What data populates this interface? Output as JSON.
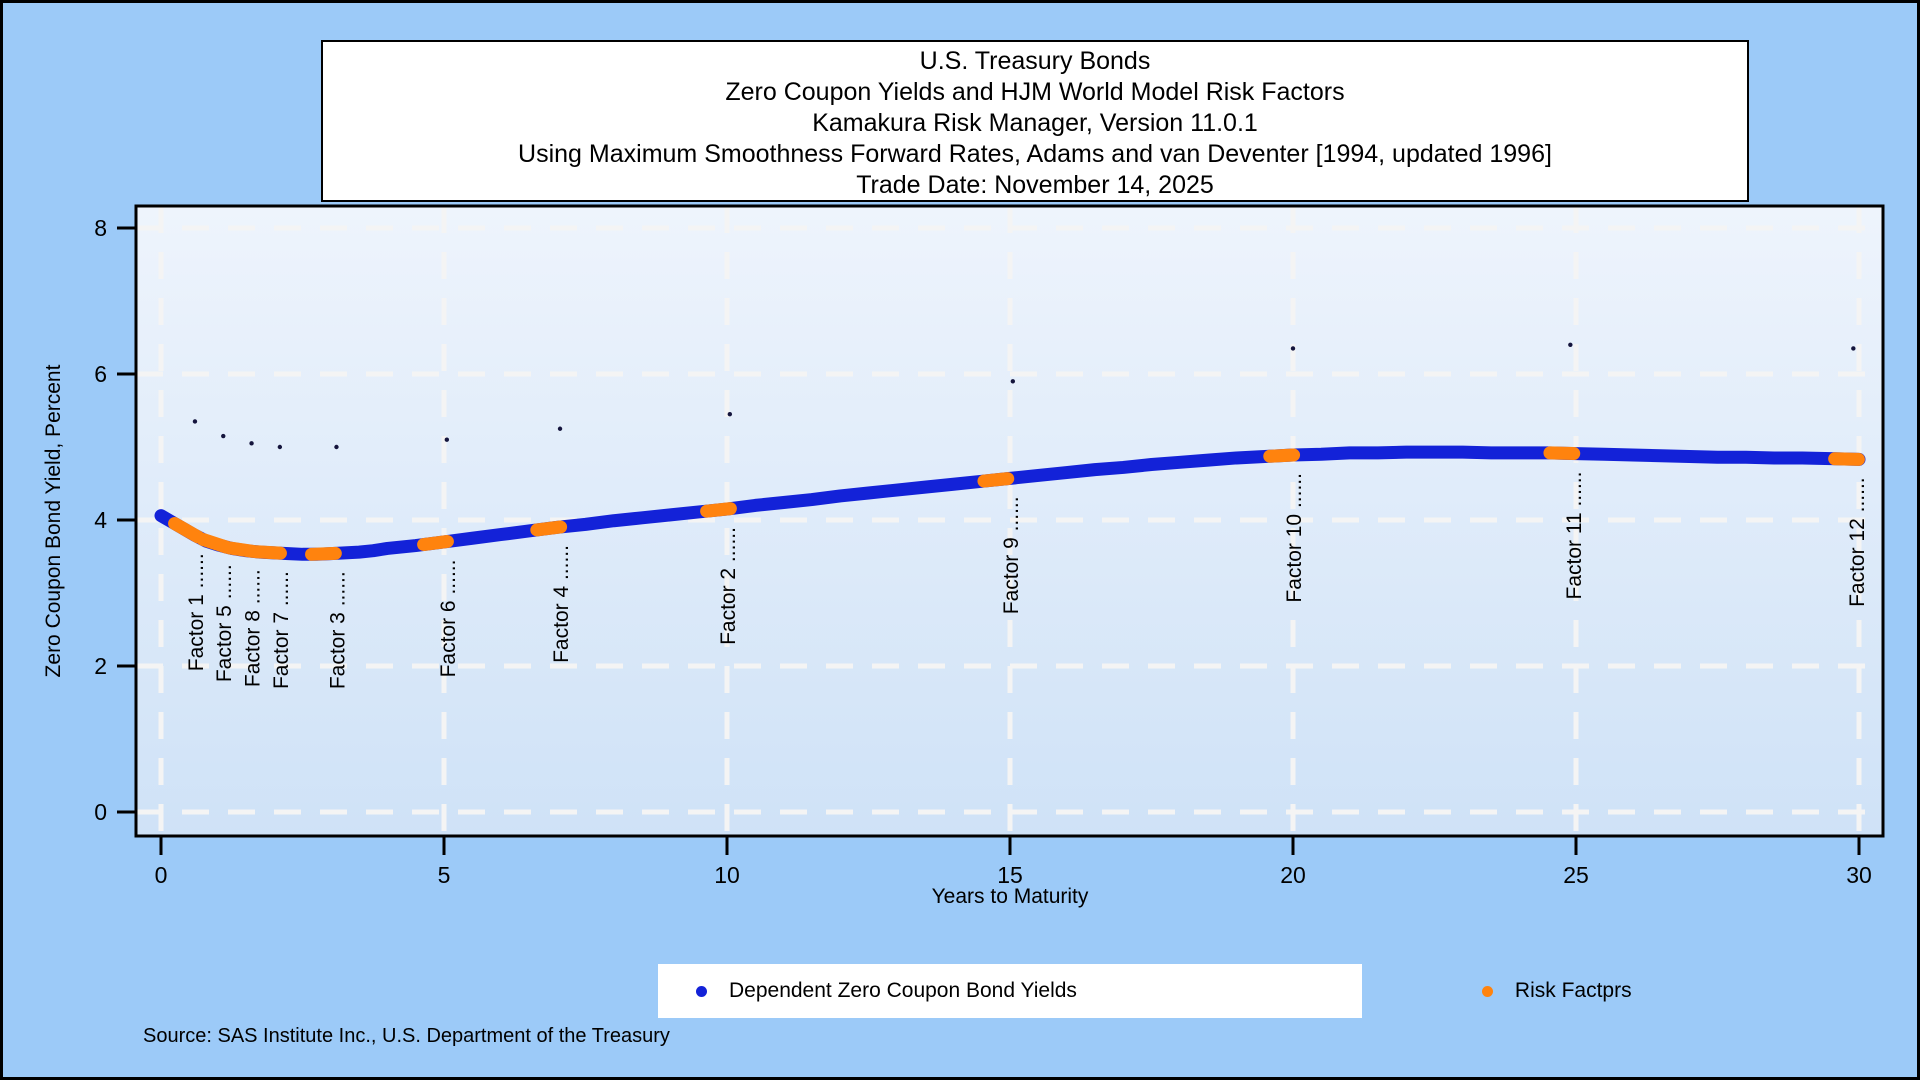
{
  "styles": {
    "canvas_bg": "#9ccaf8",
    "plot_bg_top": "#eef4fc",
    "plot_bg_bottom": "#cfe2f7",
    "grid_color": "#f4f4f4",
    "frame_color": "#000000",
    "curve_color": "#1322d8",
    "factor_color": "#ff830e",
    "marker_dot_color": "#14143c",
    "text_color": "#000000"
  },
  "title_box": {
    "lines": [
      "U.S. Treasury Bonds",
      "Zero Coupon Yields and HJM World Model Risk Factors",
      "Kamakura Risk Manager, Version 11.0.1",
      "Using Maximum Smoothness Forward Rates, Adams and van Deventer [1994, updated 1996]",
      "Trade Date: November 14, 2025"
    ]
  },
  "legend": {
    "items": [
      {
        "label": "Dependent Zero Coupon Bond Yields",
        "color": "#1322d8"
      },
      {
        "label": "Risk Factprs",
        "color": "#ff830e"
      }
    ]
  },
  "source": {
    "text": "Source: SAS Institute Inc., U.S. Department of the Treasury"
  },
  "chart_data": {
    "type": "line",
    "title": "U.S. Treasury Bonds — Zero Coupon Yields and HJM World Model Risk Factors",
    "xlabel": "Years to Maturity",
    "ylabel": "Zero Coupon Bond Yield, Percent",
    "xlim": [
      0,
      30
    ],
    "ylim": [
      0,
      8
    ],
    "x_ticks": [
      0,
      5,
      10,
      15,
      20,
      25,
      30
    ],
    "y_ticks": [
      0,
      2,
      4,
      6,
      8
    ],
    "grid": "dashed-white",
    "legend_position": "bottom",
    "leader_dots": "......",
    "series": [
      {
        "name": "Dependent Zero Coupon Bond Yields",
        "points": [
          [
            0,
            4.06
          ],
          [
            0.2,
            3.97
          ],
          [
            0.4,
            3.88
          ],
          [
            0.6,
            3.79
          ],
          [
            0.8,
            3.71
          ],
          [
            1,
            3.66
          ],
          [
            1.25,
            3.61
          ],
          [
            1.5,
            3.58
          ],
          [
            1.75,
            3.56
          ],
          [
            2,
            3.55
          ],
          [
            2.25,
            3.54
          ],
          [
            2.5,
            3.53
          ],
          [
            2.75,
            3.53
          ],
          [
            3,
            3.54
          ],
          [
            3.25,
            3.55
          ],
          [
            3.5,
            3.56
          ],
          [
            3.75,
            3.58
          ],
          [
            4,
            3.61
          ],
          [
            4.5,
            3.65
          ],
          [
            5,
            3.7
          ],
          [
            5.5,
            3.75
          ],
          [
            6,
            3.8
          ],
          [
            6.5,
            3.85
          ],
          [
            7,
            3.9
          ],
          [
            7.5,
            3.94
          ],
          [
            8,
            3.99
          ],
          [
            8.5,
            4.03
          ],
          [
            9,
            4.07
          ],
          [
            9.5,
            4.11
          ],
          [
            10,
            4.15
          ],
          [
            10.5,
            4.2
          ],
          [
            11,
            4.24
          ],
          [
            11.5,
            4.28
          ],
          [
            12,
            4.33
          ],
          [
            12.5,
            4.37
          ],
          [
            13,
            4.41
          ],
          [
            13.5,
            4.45
          ],
          [
            14,
            4.49
          ],
          [
            14.5,
            4.53
          ],
          [
            15,
            4.57
          ],
          [
            15.5,
            4.61
          ],
          [
            16,
            4.65
          ],
          [
            16.5,
            4.69
          ],
          [
            17,
            4.72
          ],
          [
            17.5,
            4.76
          ],
          [
            18,
            4.79
          ],
          [
            18.5,
            4.82
          ],
          [
            19,
            4.85
          ],
          [
            19.5,
            4.87
          ],
          [
            20,
            4.89
          ],
          [
            20.5,
            4.9
          ],
          [
            21,
            4.92
          ],
          [
            21.5,
            4.92
          ],
          [
            22,
            4.93
          ],
          [
            22.5,
            4.93
          ],
          [
            23,
            4.93
          ],
          [
            23.5,
            4.92
          ],
          [
            24,
            4.92
          ],
          [
            24.5,
            4.92
          ],
          [
            25,
            4.91
          ],
          [
            25.5,
            4.9
          ],
          [
            26,
            4.89
          ],
          [
            26.5,
            4.88
          ],
          [
            27,
            4.87
          ],
          [
            27.5,
            4.86
          ],
          [
            28,
            4.86
          ],
          [
            28.5,
            4.85
          ],
          [
            29,
            4.85
          ],
          [
            29.5,
            4.84
          ],
          [
            30,
            4.83
          ]
        ]
      },
      {
        "name": "Risk Factprs",
        "risk_factors": [
          {
            "name": "Factor 1",
            "x": 0.45,
            "label_x": 0.6,
            "marker_dot": [
              0.6,
              5.35
            ]
          },
          {
            "name": "Factor 5",
            "x": 0.95,
            "label_x": 1.1,
            "marker_dot": [
              1.1,
              5.15
            ]
          },
          {
            "name": "Factor 8",
            "x": 1.42,
            "label_x": 1.6,
            "marker_dot": [
              1.6,
              5.05
            ]
          },
          {
            "name": "Factor 7",
            "x": 1.9,
            "label_x": 2.1,
            "marker_dot": [
              2.1,
              5.0
            ]
          },
          {
            "name": "Factor 3",
            "x": 2.87,
            "label_x": 3.1,
            "marker_dot": [
              3.1,
              5.0
            ]
          },
          {
            "name": "Factor 6",
            "x": 4.85,
            "label_x": 5.05,
            "marker_dot": [
              5.05,
              5.1
            ]
          },
          {
            "name": "Factor 4",
            "x": 6.85,
            "label_x": 7.05,
            "marker_dot": [
              7.05,
              5.25
            ]
          },
          {
            "name": "Factor 2",
            "x": 9.85,
            "label_x": 10.0,
            "marker_dot": [
              10.05,
              5.45
            ]
          },
          {
            "name": "Factor 9",
            "x": 14.75,
            "label_x": 15.0,
            "marker_dot": [
              15.05,
              5.9
            ]
          },
          {
            "name": "Factor 10",
            "x": 19.8,
            "label_x": 20.0,
            "marker_dot": [
              20.0,
              6.35
            ]
          },
          {
            "name": "Factor 11",
            "x": 24.75,
            "label_x": 24.95,
            "marker_dot": [
              24.9,
              6.4
            ]
          },
          {
            "name": "Factor 12",
            "x": 29.78,
            "label_x": 29.95,
            "marker_dot": [
              29.9,
              6.35
            ]
          }
        ]
      }
    ]
  }
}
